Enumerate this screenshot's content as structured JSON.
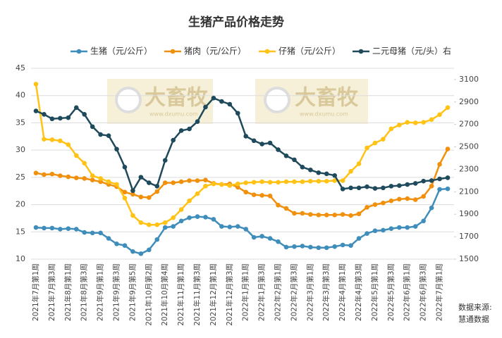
{
  "chart_data": {
    "type": "line",
    "title": "生猪产品价格走势",
    "watermark": [
      "大畜牧",
      "www.dxumu.com"
    ],
    "source": [
      "数据来源:",
      "慧通数据"
    ],
    "categories": [
      "2021年7月第1周",
      null,
      "2021年7月第3周",
      null,
      "2021年8月第1周",
      null,
      "2021年8月第3周",
      null,
      "2021年9月第1周",
      null,
      "2021年9月第3周",
      null,
      "2021年9月第5周",
      null,
      "2021年10月第2周",
      null,
      "2021年10月第4周",
      null,
      "2021年11月第1周",
      null,
      "2021年11月第3周",
      null,
      "2021年12月第1周",
      null,
      "2021年12月第3周",
      null,
      "2022年1月第1周",
      null,
      "2022年1月第3周",
      null,
      "2022年2月第1周",
      null,
      "2022年2月第3周",
      null,
      "2022年3月第1周",
      null,
      "2022年3月第3周",
      null,
      "2022年4月第1周",
      null,
      "2022年4月第3周",
      null,
      "2022年5月第1周",
      null,
      "2022年5月第3周",
      null,
      "2022年6月第1周",
      null,
      "2022年6月第3周",
      null,
      "2022年7月第1周",
      null
    ],
    "ylim": [
      10,
      45
    ],
    "yticks": [
      10,
      15,
      20,
      25,
      30,
      35,
      40,
      45
    ],
    "y2lim": [
      1500,
      3200
    ],
    "y2ticks": [
      1500,
      1700,
      1900,
      2100,
      2300,
      2500,
      2700,
      2900,
      3100
    ],
    "grid": true,
    "legend": "top",
    "series": [
      {
        "name": "生猪（元/公斤）",
        "color": "#3f8dbb",
        "values": [
          15.8,
          15.7,
          15.7,
          15.5,
          15.6,
          15.5,
          14.9,
          14.8,
          14.8,
          13.8,
          12.8,
          12.5,
          11.4,
          11.0,
          11.7,
          13.6,
          15.8,
          16.0,
          17.0,
          17.6,
          17.8,
          17.7,
          17.3,
          16.0,
          15.9,
          16.0,
          15.5,
          14.0,
          14.2,
          13.8,
          13.2,
          12.2,
          12.3,
          12.4,
          12.2,
          12.1,
          12.1,
          12.3,
          12.6,
          12.5,
          13.8,
          14.7,
          15.2,
          15.3,
          15.6,
          15.8,
          15.8,
          16.0,
          17.0,
          19.4,
          22.8,
          22.9
        ]
      },
      {
        "name": "猪肉（元/公斤）",
        "color": "#f0900c",
        "values": [
          25.8,
          25.5,
          25.6,
          25.3,
          25.1,
          24.9,
          24.8,
          24.5,
          24.2,
          23.7,
          23.3,
          22.3,
          21.9,
          21.4,
          21.3,
          22.4,
          24.0,
          24.0,
          24.2,
          24.4,
          24.4,
          24.5,
          23.9,
          23.7,
          23.8,
          23.2,
          22.3,
          21.8,
          21.7,
          21.6,
          19.9,
          19.3,
          18.4,
          18.4,
          18.2,
          18.1,
          18.1,
          18.1,
          18.2,
          18.0,
          18.3,
          19.5,
          20.0,
          20.3,
          20.7,
          21.0,
          21.1,
          20.9,
          21.5,
          23.4,
          27.4,
          30.2
        ]
      },
      {
        "name": "仔猪（元/公斤）",
        "color": "#ffc215",
        "values": [
          42.1,
          32.0,
          31.9,
          31.7,
          31.0,
          29.0,
          27.6,
          25.3,
          24.8,
          24.2,
          23.7,
          21.2,
          18.0,
          16.7,
          16.3,
          16.3,
          16.7,
          17.6,
          19.1,
          20.7,
          22.0,
          23.4,
          23.8,
          23.7,
          23.5,
          23.8,
          24.0,
          24.1,
          24.2,
          24.1,
          24.1,
          24.2,
          24.2,
          24.2,
          24.3,
          24.3,
          24.3,
          24.4,
          24.4,
          26.1,
          27.5,
          30.4,
          31.3,
          32.0,
          33.9,
          34.6,
          35.1,
          35.0,
          35.1,
          35.6,
          36.5,
          37.8
        ]
      },
      {
        "name": "二元母猪（元/头）右",
        "color": "#1f4a5c",
        "axis": "y2",
        "values": [
          2820,
          2790,
          2750,
          2755,
          2760,
          2850,
          2790,
          2680,
          2610,
          2600,
          2480,
          2320,
          2110,
          2230,
          2180,
          2150,
          2380,
          2560,
          2645,
          2660,
          2725,
          2855,
          2935,
          2905,
          2880,
          2800,
          2595,
          2555,
          2525,
          2535,
          2475,
          2420,
          2385,
          2320,
          2295,
          2270,
          2260,
          2245,
          2125,
          2135,
          2135,
          2145,
          2130,
          2135,
          2150,
          2155,
          2165,
          2175,
          2195,
          2200,
          2215,
          2225
        ]
      }
    ]
  }
}
